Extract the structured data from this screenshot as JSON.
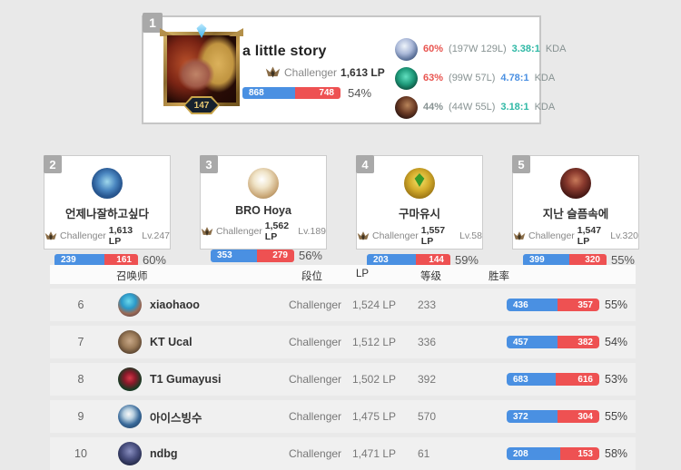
{
  "colors": {
    "win_blue": "#4a90e2",
    "loss_red": "#ee5152",
    "winrate_red": "#e8544f",
    "kda_green": "#2eb8a5",
    "kda_blue": "#4a90e2",
    "muted_gray": "#879292"
  },
  "top_player": {
    "rank": "1",
    "name": "a little story",
    "tier": "Challenger",
    "lp": "1,613 LP",
    "summoner_level": "147",
    "wins": "868",
    "losses": "748",
    "winrate": "54%",
    "win_pct": 53.7,
    "champions": [
      {
        "winrate": "60%",
        "winrate_color": "#e8544f",
        "record": "(197W 129L)",
        "kda": "3.38:1",
        "kda_color": "#2eb8a5",
        "kda_label": "KDA"
      },
      {
        "winrate": "63%",
        "winrate_color": "#e8544f",
        "record": "(99W 57L)",
        "kda": "4.78:1",
        "kda_color": "#4a90e2",
        "kda_label": "KDA"
      },
      {
        "winrate": "44%",
        "winrate_color": "#879292",
        "record": "(44W 55L)",
        "kda": "3.18:1",
        "kda_color": "#2eb8a5",
        "kda_label": "KDA"
      }
    ]
  },
  "cards": [
    {
      "rank": "2",
      "name": "언제나잘하고싶다",
      "tier": "Challenger",
      "lp": "1,613 LP",
      "level": "Lv.247",
      "wins": "239",
      "losses": "161",
      "winrate": "60%",
      "win_pct": 59.8
    },
    {
      "rank": "3",
      "name": "BRO Hoya",
      "tier": "Challenger",
      "lp": "1,562 LP",
      "level": "Lv.189",
      "wins": "353",
      "losses": "279",
      "winrate": "56%",
      "win_pct": 55.9
    },
    {
      "rank": "4",
      "name": "구마유시",
      "tier": "Challenger",
      "lp": "1,557 LP",
      "level": "Lv.58",
      "wins": "203",
      "losses": "144",
      "winrate": "59%",
      "win_pct": 58.5
    },
    {
      "rank": "5",
      "name": "지난 슬픔속에",
      "tier": "Challenger",
      "lp": "1,547 LP",
      "level": "Lv.320",
      "wins": "399",
      "losses": "320",
      "winrate": "55%",
      "win_pct": 55.5
    }
  ],
  "table": {
    "headers": {
      "summoner": "召唤师",
      "tier": "段位",
      "lp": "LP",
      "level": "等级",
      "winrate": "胜率"
    },
    "rows": [
      {
        "rank": "6",
        "name": "xiaohaoo",
        "tier": "Challenger",
        "lp": "1,524 LP",
        "level": "233",
        "wins": "436",
        "losses": "357",
        "winrate": "55%",
        "win_pct": 55.0
      },
      {
        "rank": "7",
        "name": "KT Ucal",
        "tier": "Challenger",
        "lp": "1,512 LP",
        "level": "336",
        "wins": "457",
        "losses": "382",
        "winrate": "54%",
        "win_pct": 54.5
      },
      {
        "rank": "8",
        "name": "T1 Gumayusi",
        "tier": "Challenger",
        "lp": "1,502 LP",
        "level": "392",
        "wins": "683",
        "losses": "616",
        "winrate": "53%",
        "win_pct": 52.6
      },
      {
        "rank": "9",
        "name": "아이스빙수",
        "tier": "Challenger",
        "lp": "1,475 LP",
        "level": "570",
        "wins": "372",
        "losses": "304",
        "winrate": "55%",
        "win_pct": 55.0
      },
      {
        "rank": "10",
        "name": "ndbg",
        "tier": "Challenger",
        "lp": "1,471 LP",
        "level": "61",
        "wins": "208",
        "losses": "153",
        "winrate": "58%",
        "win_pct": 57.6
      }
    ]
  }
}
